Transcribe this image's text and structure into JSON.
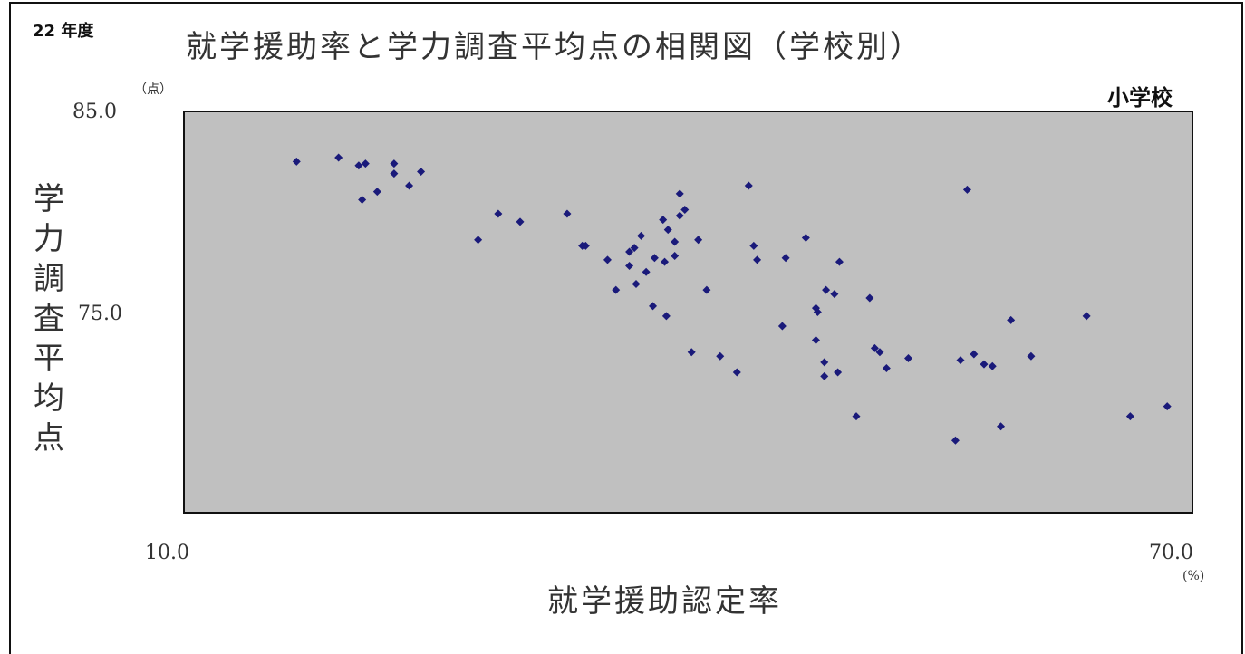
{
  "header": {
    "year": "22 年度",
    "title": "就学援助率と学力調査平均点の相関図（学校別）",
    "category": "小学校"
  },
  "axes": {
    "y_unit": "（点）",
    "x_unit": "(%)",
    "ylabel_chars": [
      "学",
      "力",
      "調",
      "査",
      "平",
      "均",
      "点"
    ]
  },
  "chart_data": {
    "type": "scatter",
    "title": "就学援助率と学力調査平均点の相関図（学校別）",
    "xlabel": "就学援助認定率",
    "ylabel": "学力調査平均点",
    "xlim": [
      10,
      70
    ],
    "ylim": [
      65,
      85
    ],
    "xticks": [
      "10.0",
      "70.0"
    ],
    "yticks": [
      "85.0",
      "75.0"
    ],
    "grid": false,
    "legend": "none",
    "marker_color": "#1a1a7a",
    "background": "#c0c0c0",
    "series": [
      {
        "points": [
          [
            16.7,
            82.5
          ],
          [
            19.2,
            82.7
          ],
          [
            20.4,
            82.3
          ],
          [
            20.8,
            82.4
          ],
          [
            22.5,
            82.4
          ],
          [
            22.5,
            81.9
          ],
          [
            24.1,
            82.0
          ],
          [
            23.4,
            81.3
          ],
          [
            21.5,
            81.0
          ],
          [
            20.6,
            80.6
          ],
          [
            27.5,
            78.6
          ],
          [
            28.7,
            79.9
          ],
          [
            30.0,
            79.5
          ],
          [
            32.8,
            79.9
          ],
          [
            33.7,
            78.3
          ],
          [
            33.9,
            78.3
          ],
          [
            35.2,
            77.6
          ],
          [
            36.5,
            78.0
          ],
          [
            36.8,
            78.2
          ],
          [
            37.2,
            78.8
          ],
          [
            38.5,
            79.6
          ],
          [
            39.5,
            79.8
          ],
          [
            39.8,
            80.1
          ],
          [
            39.5,
            80.9
          ],
          [
            38.8,
            79.1
          ],
          [
            39.2,
            78.5
          ],
          [
            39.2,
            77.8
          ],
          [
            38.6,
            77.5
          ],
          [
            38.0,
            77.7
          ],
          [
            37.5,
            77.0
          ],
          [
            36.5,
            77.3
          ],
          [
            35.7,
            76.1
          ],
          [
            36.9,
            76.4
          ],
          [
            37.9,
            75.3
          ],
          [
            38.7,
            74.8
          ],
          [
            40.6,
            78.6
          ],
          [
            41.1,
            76.1
          ],
          [
            40.2,
            73.0
          ],
          [
            41.9,
            72.8
          ],
          [
            42.9,
            72.0
          ],
          [
            43.6,
            81.3
          ],
          [
            43.9,
            78.3
          ],
          [
            44.1,
            77.6
          ],
          [
            45.8,
            77.7
          ],
          [
            47.0,
            78.7
          ],
          [
            45.6,
            74.3
          ],
          [
            47.6,
            73.6
          ],
          [
            47.6,
            75.2
          ],
          [
            47.7,
            75.0
          ],
          [
            48.2,
            76.1
          ],
          [
            48.7,
            75.9
          ],
          [
            49.0,
            77.5
          ],
          [
            48.1,
            72.5
          ],
          [
            48.1,
            71.8
          ],
          [
            48.9,
            72.0
          ],
          [
            50.8,
            75.7
          ],
          [
            51.1,
            73.2
          ],
          [
            51.4,
            73.0
          ],
          [
            51.8,
            72.2
          ],
          [
            50.0,
            69.8
          ],
          [
            53.1,
            72.7
          ],
          [
            55.9,
            68.6
          ],
          [
            56.2,
            72.6
          ],
          [
            57.0,
            72.9
          ],
          [
            57.6,
            72.4
          ],
          [
            58.1,
            72.3
          ],
          [
            56.6,
            81.1
          ],
          [
            59.2,
            74.6
          ],
          [
            58.6,
            69.3
          ],
          [
            60.4,
            72.8
          ],
          [
            63.7,
            74.8
          ],
          [
            66.3,
            69.8
          ],
          [
            68.5,
            70.3
          ]
        ]
      }
    ]
  }
}
